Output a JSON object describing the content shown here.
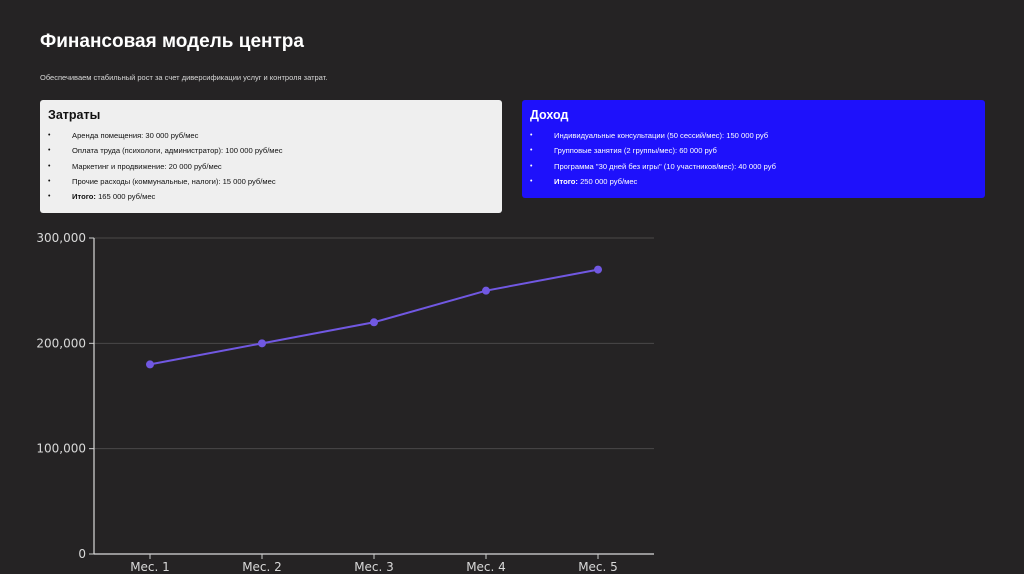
{
  "page": {
    "title": "Финансовая модель центра",
    "subtitle": "Обеспечиваем стабильный рост за счет диверсификации услуг и контроля затрат."
  },
  "costs": {
    "heading": "Затраты",
    "items": [
      "Аренда помещения: 30 000 руб/мес",
      "Оплата труда (психологи, администратор): 100 000 руб/мес",
      "Маркетинг и продвижение: 20 000 руб/мес",
      "Прочие расходы (коммунальные, налоги): 15 000 руб/мес"
    ],
    "total_label": "Итого:",
    "total_value": " 165 000 руб/мес"
  },
  "income": {
    "heading": "Доход",
    "items": [
      "Индивидуальные консультации (50 сессий/мес): 150 000 руб",
      "Групповые занятия (2 группы/мес): 60 000 руб",
      "Программа \"30 дней без игры\" (10 участников/мес): 40 000 руб"
    ],
    "total_label": "Итого:",
    "total_value": " 250 000 руб/мес"
  },
  "bullet": "•",
  "chart_data": {
    "type": "line",
    "title": "",
    "xlabel": "",
    "ylabel": "",
    "categories": [
      "Мес. 1",
      "Мес. 2",
      "Мес. 3",
      "Мес. 4",
      "Мес. 5"
    ],
    "series": [
      {
        "values": [
          180000,
          200000,
          220000,
          250000,
          270000
        ],
        "color": "#7158e2"
      }
    ],
    "ylim": [
      0,
      300000
    ],
    "yticks": [
      0,
      100000,
      200000,
      300000
    ],
    "ytick_labels": [
      "0",
      "100,000",
      "200,000",
      "300,000"
    ],
    "grid": true
  }
}
